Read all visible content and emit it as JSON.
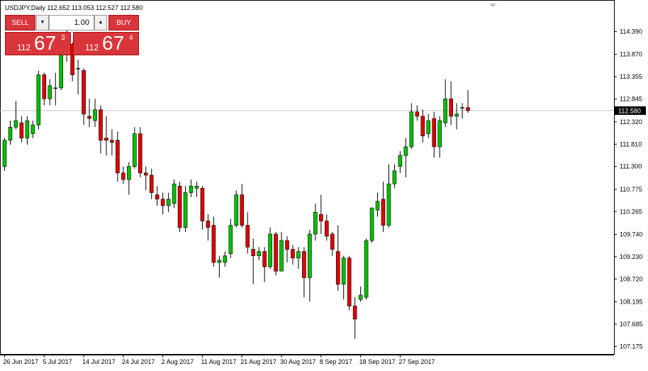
{
  "header": {
    "title": "USDJPY,Daily  112.652 113.053 112.527 112.580"
  },
  "trade_panel": {
    "sell_label": "SELL",
    "buy_label": "BUY",
    "lot_value": "1.00",
    "sell_quote": {
      "small": "112",
      "big": "67",
      "sup": "3"
    },
    "buy_quote": {
      "small": "112",
      "big": "67",
      "sup": "4"
    }
  },
  "colors": {
    "bull": "#00c000",
    "bear": "#e00000",
    "wick": "#000000",
    "price_line": "#c0c0c0",
    "price_tag_bg": "#000000",
    "price_tag_text": "#ffffff",
    "accent": "#d9363c"
  },
  "chart_data": {
    "type": "candlestick",
    "symbol": "USDJPY",
    "timeframe": "Daily",
    "last_price": 112.58,
    "last_price_label": "112.580",
    "ylim": [
      107.05,
      115.05
    ],
    "y_ticks": [
      "114.390",
      "113.870",
      "113.355",
      "112.845",
      "112.320",
      "111.810",
      "111.300",
      "110.775",
      "110.265",
      "109.740",
      "109.230",
      "108.720",
      "108.195",
      "107.685",
      "107.175"
    ],
    "x_labels": [
      {
        "label": "26 Jun 2017",
        "index": 0
      },
      {
        "label": "5 Jul 2017",
        "index": 7
      },
      {
        "label": "14 Jul 2017",
        "index": 14
      },
      {
        "label": "24 Jul 2017",
        "index": 21
      },
      {
        "label": "2 Aug 2017",
        "index": 28
      },
      {
        "label": "11 Aug 2017",
        "index": 35
      },
      {
        "label": "21 Aug 2017",
        "index": 42
      },
      {
        "label": "30 Aug 2017",
        "index": 49
      },
      {
        "label": "8 Sep 2017",
        "index": 56
      },
      {
        "label": "18 Sep 2017",
        "index": 63
      },
      {
        "label": "27 Sep 2017",
        "index": 70
      }
    ],
    "candles": [
      {
        "o": 111.3,
        "h": 111.95,
        "l": 111.2,
        "c": 111.9
      },
      {
        "o": 111.9,
        "h": 112.35,
        "l": 111.8,
        "c": 112.2
      },
      {
        "o": 112.2,
        "h": 112.8,
        "l": 112.15,
        "c": 112.35
      },
      {
        "o": 112.3,
        "h": 112.45,
        "l": 111.85,
        "c": 111.95
      },
      {
        "o": 111.95,
        "h": 112.45,
        "l": 111.8,
        "c": 112.35
      },
      {
        "o": 112.05,
        "h": 112.35,
        "l": 111.95,
        "c": 112.25
      },
      {
        "o": 112.25,
        "h": 113.5,
        "l": 112.15,
        "c": 113.4
      },
      {
        "o": 113.4,
        "h": 113.45,
        "l": 112.7,
        "c": 112.85
      },
      {
        "o": 112.85,
        "h": 113.3,
        "l": 112.7,
        "c": 113.15
      },
      {
        "o": 113.1,
        "h": 113.45,
        "l": 112.7,
        "c": 113.1
      },
      {
        "o": 113.1,
        "h": 114.1,
        "l": 113.05,
        "c": 114.0
      },
      {
        "o": 114.05,
        "h": 114.45,
        "l": 113.7,
        "c": 114.3
      },
      {
        "o": 114.1,
        "h": 114.15,
        "l": 113.25,
        "c": 113.4
      },
      {
        "o": 113.55,
        "h": 113.75,
        "l": 112.95,
        "c": 113.55
      },
      {
        "o": 113.5,
        "h": 113.55,
        "l": 112.25,
        "c": 112.5
      },
      {
        "o": 112.45,
        "h": 112.85,
        "l": 112.2,
        "c": 112.4
      },
      {
        "o": 112.35,
        "h": 112.85,
        "l": 112.2,
        "c": 112.6
      },
      {
        "o": 112.6,
        "h": 112.7,
        "l": 111.6,
        "c": 111.9
      },
      {
        "o": 111.95,
        "h": 112.45,
        "l": 111.55,
        "c": 111.9
      },
      {
        "o": 111.9,
        "h": 112.15,
        "l": 111.55,
        "c": 111.85
      },
      {
        "o": 111.9,
        "h": 112.1,
        "l": 110.95,
        "c": 111.15
      },
      {
        "o": 111.15,
        "h": 111.3,
        "l": 110.9,
        "c": 111.0
      },
      {
        "o": 111.0,
        "h": 111.4,
        "l": 110.65,
        "c": 111.3
      },
      {
        "o": 111.3,
        "h": 112.2,
        "l": 111.25,
        "c": 112.05
      },
      {
        "o": 112.05,
        "h": 112.2,
        "l": 111.05,
        "c": 111.15
      },
      {
        "o": 111.15,
        "h": 111.3,
        "l": 110.75,
        "c": 111.1
      },
      {
        "o": 111.1,
        "h": 111.25,
        "l": 110.55,
        "c": 110.7
      },
      {
        "o": 110.65,
        "h": 110.85,
        "l": 110.4,
        "c": 110.55
      },
      {
        "o": 110.55,
        "h": 110.7,
        "l": 110.2,
        "c": 110.4
      },
      {
        "o": 110.4,
        "h": 110.7,
        "l": 110.25,
        "c": 110.55
      },
      {
        "o": 110.45,
        "h": 111.0,
        "l": 110.35,
        "c": 110.9
      },
      {
        "o": 110.85,
        "h": 110.95,
        "l": 109.8,
        "c": 109.9
      },
      {
        "o": 109.9,
        "h": 110.85,
        "l": 109.8,
        "c": 110.7
      },
      {
        "o": 110.7,
        "h": 111.0,
        "l": 110.6,
        "c": 110.85
      },
      {
        "o": 110.8,
        "h": 110.95,
        "l": 110.6,
        "c": 110.85
      },
      {
        "o": 110.8,
        "h": 110.85,
        "l": 109.85,
        "c": 110.05
      },
      {
        "o": 110.05,
        "h": 110.2,
        "l": 109.6,
        "c": 109.9
      },
      {
        "o": 109.95,
        "h": 110.15,
        "l": 109.0,
        "c": 109.1
      },
      {
        "o": 109.1,
        "h": 109.25,
        "l": 108.75,
        "c": 109.15
      },
      {
        "o": 109.1,
        "h": 109.35,
        "l": 109.0,
        "c": 109.25
      },
      {
        "o": 109.3,
        "h": 110.1,
        "l": 109.2,
        "c": 109.95
      },
      {
        "o": 109.95,
        "h": 110.75,
        "l": 109.9,
        "c": 110.65
      },
      {
        "o": 110.65,
        "h": 110.9,
        "l": 109.9,
        "c": 109.95
      },
      {
        "o": 109.95,
        "h": 110.25,
        "l": 109.3,
        "c": 109.45
      },
      {
        "o": 109.4,
        "h": 109.65,
        "l": 108.6,
        "c": 109.25
      },
      {
        "o": 109.25,
        "h": 109.45,
        "l": 109.15,
        "c": 109.35
      },
      {
        "o": 109.35,
        "h": 109.45,
        "l": 108.65,
        "c": 109.0
      },
      {
        "o": 109.0,
        "h": 109.9,
        "l": 108.95,
        "c": 109.75
      },
      {
        "o": 109.75,
        "h": 109.8,
        "l": 108.8,
        "c": 108.9
      },
      {
        "o": 108.9,
        "h": 109.8,
        "l": 108.9,
        "c": 109.6
      },
      {
        "o": 109.6,
        "h": 109.7,
        "l": 109.1,
        "c": 109.4
      },
      {
        "o": 109.4,
        "h": 109.5,
        "l": 109.05,
        "c": 109.2
      },
      {
        "o": 109.2,
        "h": 109.45,
        "l": 108.95,
        "c": 109.35
      },
      {
        "o": 109.35,
        "h": 109.45,
        "l": 108.3,
        "c": 108.75
      },
      {
        "o": 108.75,
        "h": 109.85,
        "l": 108.2,
        "c": 109.75
      },
      {
        "o": 109.75,
        "h": 110.45,
        "l": 109.6,
        "c": 110.25
      },
      {
        "o": 110.2,
        "h": 110.65,
        "l": 109.75,
        "c": 110.05
      },
      {
        "o": 110.05,
        "h": 110.2,
        "l": 109.6,
        "c": 109.7
      },
      {
        "o": 109.75,
        "h": 109.8,
        "l": 109.25,
        "c": 109.4
      },
      {
        "o": 109.35,
        "h": 109.95,
        "l": 108.45,
        "c": 108.6
      },
      {
        "o": 108.6,
        "h": 109.25,
        "l": 108.25,
        "c": 109.2
      },
      {
        "o": 109.2,
        "h": 109.25,
        "l": 108.0,
        "c": 108.1
      },
      {
        "o": 108.1,
        "h": 108.3,
        "l": 107.35,
        "c": 107.8
      },
      {
        "o": 108.25,
        "h": 108.55,
        "l": 108.2,
        "c": 108.35
      },
      {
        "o": 108.3,
        "h": 109.65,
        "l": 108.25,
        "c": 109.6
      },
      {
        "o": 109.6,
        "h": 110.35,
        "l": 109.55,
        "c": 110.35
      },
      {
        "o": 110.3,
        "h": 110.7,
        "l": 110.15,
        "c": 110.5
      },
      {
        "o": 110.55,
        "h": 110.95,
        "l": 109.8,
        "c": 109.95
      },
      {
        "o": 109.95,
        "h": 111.35,
        "l": 109.9,
        "c": 110.9
      },
      {
        "o": 110.9,
        "h": 111.35,
        "l": 110.8,
        "c": 111.2
      },
      {
        "o": 111.3,
        "h": 111.65,
        "l": 111.15,
        "c": 111.55
      },
      {
        "o": 111.55,
        "h": 111.95,
        "l": 111.05,
        "c": 111.75
      },
      {
        "o": 111.75,
        "h": 112.75,
        "l": 111.7,
        "c": 112.55
      },
      {
        "o": 112.55,
        "h": 112.7,
        "l": 112.35,
        "c": 112.45
      },
      {
        "o": 112.45,
        "h": 112.6,
        "l": 111.85,
        "c": 112.0
      },
      {
        "o": 112.05,
        "h": 112.5,
        "l": 111.95,
        "c": 112.35
      },
      {
        "o": 112.4,
        "h": 112.55,
        "l": 111.5,
        "c": 111.75
      },
      {
        "o": 111.75,
        "h": 112.45,
        "l": 111.5,
        "c": 112.35
      },
      {
        "o": 112.3,
        "h": 113.3,
        "l": 112.2,
        "c": 112.85
      },
      {
        "o": 112.85,
        "h": 113.25,
        "l": 112.25,
        "c": 112.45
      },
      {
        "o": 112.45,
        "h": 112.75,
        "l": 112.15,
        "c": 112.5
      },
      {
        "o": 112.65,
        "h": 112.75,
        "l": 112.4,
        "c": 112.65
      },
      {
        "o": 112.65,
        "h": 113.05,
        "l": 112.53,
        "c": 112.58
      }
    ]
  }
}
